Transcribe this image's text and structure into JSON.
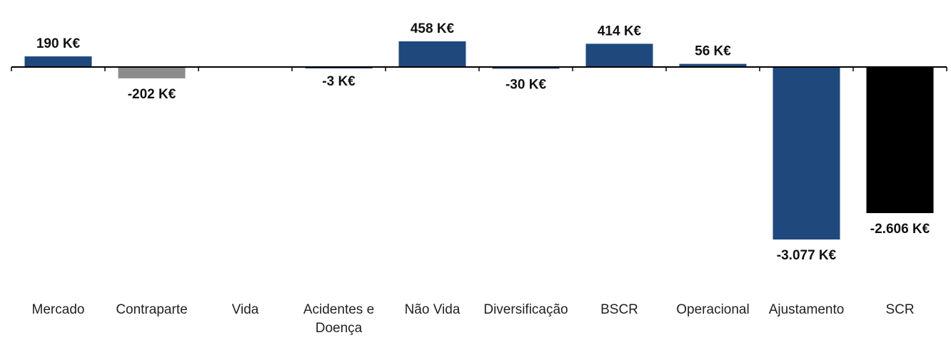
{
  "chart_data": {
    "type": "bar",
    "categories": [
      "Mercado",
      "Contraparte",
      "Vida",
      "Acidentes e\nDoença",
      "Não Vida",
      "Diversificação",
      "BSCR",
      "Operacional",
      "Ajustamento",
      "SCR"
    ],
    "values": [
      190,
      -202,
      0,
      -3,
      458,
      -30,
      414,
      56,
      -3077,
      -2606
    ],
    "data_labels": [
      "190 K€",
      "-202 K€",
      "",
      "-3 K€",
      "458 K€",
      "-30 K€",
      "414 K€",
      "56 K€",
      "-3.077 K€",
      "-2.606 K€"
    ],
    "colors": [
      "#1f497d",
      "#8c8c8c",
      "#1f497d",
      "#1f497d",
      "#1f497d",
      "#1f497d",
      "#1f497d",
      "#1f497d",
      "#1f497d",
      "#000000"
    ],
    "title": "",
    "xlabel": "",
    "ylabel": "",
    "ylim": [
      -3700,
      700
    ],
    "grid": false,
    "legend": "none"
  }
}
